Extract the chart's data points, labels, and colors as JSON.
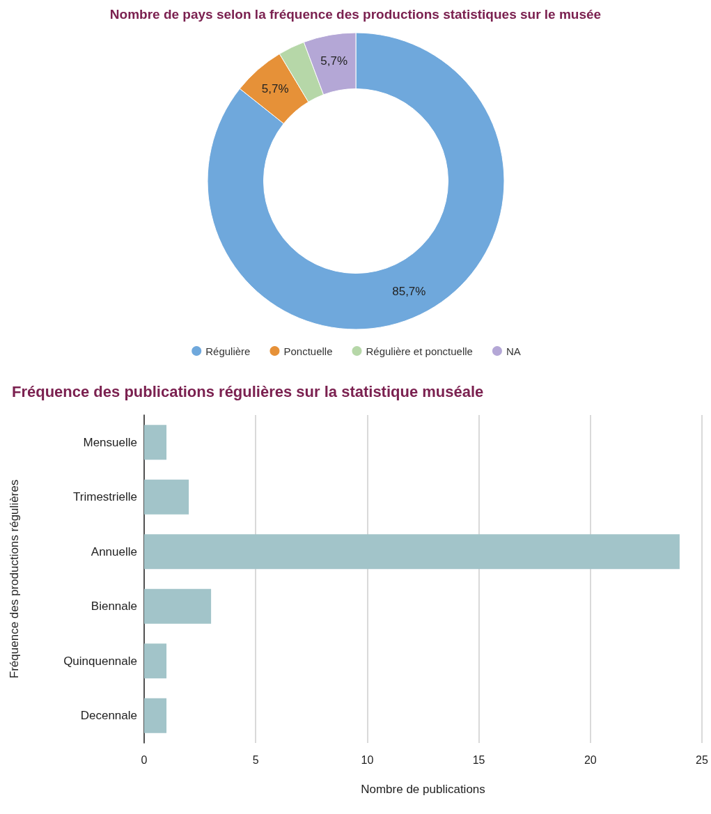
{
  "chart_data": [
    {
      "type": "donut",
      "title": "Nombre de pays selon la fréquence des productions statistiques sur le musée",
      "categories": [
        "Régulière",
        "Ponctuelle",
        "Régulière et ponctuelle",
        "NA"
      ],
      "values": [
        85.7,
        5.7,
        2.9,
        5.7
      ],
      "colors": [
        "#6fa8dc",
        "#e69138",
        "#b6d7a8",
        "#b4a7d6"
      ],
      "value_labels": [
        "85,7%",
        "5,7%",
        null,
        "5,7%"
      ],
      "legend": "bottom"
    },
    {
      "type": "bar",
      "title": "Fréquence des publications régulières sur la statistique muséale",
      "orientation": "horizontal",
      "categories": [
        "Mensuelle",
        "Trimestrielle",
        "Annuelle",
        "Biennale",
        "Quinquennale",
        "Decennale"
      ],
      "values": [
        1,
        2,
        24,
        3,
        1,
        1
      ],
      "color": "#a2c4c9",
      "xlim": [
        0,
        25
      ],
      "xticks": [
        0,
        5,
        10,
        15,
        20,
        25
      ],
      "xlabel": "Nombre de publications",
      "ylabel": "Fréquence des productions régulières",
      "grid": "x",
      "legend": false
    }
  ]
}
